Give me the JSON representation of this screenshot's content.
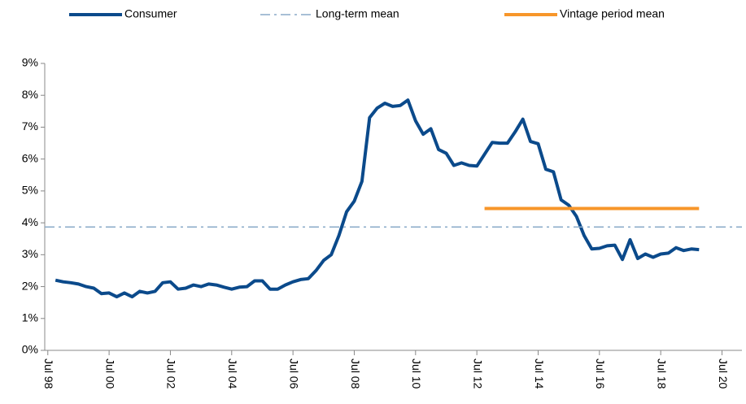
{
  "chart_data": {
    "type": "line",
    "series": [
      {
        "name": "Consumer",
        "color": "#0b4a8b",
        "style": "solid",
        "x": [
          1998.75,
          1999.0,
          1999.25,
          1999.5,
          1999.75,
          2000.0,
          2000.25,
          2000.5,
          2000.75,
          2001.0,
          2001.25,
          2001.5,
          2001.75,
          2002.0,
          2002.25,
          2002.5,
          2002.75,
          2003.0,
          2003.25,
          2003.5,
          2003.75,
          2004.0,
          2004.25,
          2004.5,
          2004.75,
          2005.0,
          2005.25,
          2005.5,
          2005.75,
          2006.0,
          2006.25,
          2006.5,
          2006.75,
          2007.0,
          2007.25,
          2007.5,
          2007.75,
          2008.0,
          2008.25,
          2008.5,
          2008.75,
          2009.0,
          2009.25,
          2009.5,
          2009.75,
          2010.0,
          2010.25,
          2010.5,
          2010.75,
          2011.0,
          2011.25,
          2011.5,
          2011.75,
          2012.0,
          2012.25,
          2012.5,
          2012.75,
          2013.0,
          2013.25,
          2013.5,
          2013.75,
          2014.0,
          2014.25,
          2014.5,
          2014.75,
          2015.0,
          2015.25,
          2015.5,
          2015.75,
          2016.0,
          2016.25,
          2016.5,
          2016.75,
          2017.0,
          2017.25,
          2017.5,
          2017.75,
          2018.0,
          2018.25,
          2018.5,
          2018.75,
          2019.0,
          2019.25,
          2019.5,
          2019.75
        ],
        "values": [
          2.2,
          2.15,
          2.12,
          2.08,
          2.0,
          1.95,
          1.78,
          1.8,
          1.68,
          1.8,
          1.68,
          1.85,
          1.8,
          1.85,
          2.12,
          2.15,
          1.92,
          1.95,
          2.05,
          2.0,
          2.08,
          2.05,
          1.98,
          1.92,
          1.98,
          2.0,
          2.18,
          2.18,
          1.92,
          1.92,
          2.05,
          2.15,
          2.22,
          2.25,
          2.5,
          2.82,
          3.0,
          3.6,
          4.35,
          4.68,
          5.3,
          7.3,
          7.6,
          7.75,
          7.65,
          7.68,
          7.85,
          7.2,
          6.78,
          6.95,
          6.3,
          6.18,
          5.8,
          5.88,
          5.8,
          5.78,
          6.15,
          6.52,
          6.5,
          6.5,
          6.85,
          7.25,
          6.55,
          6.48,
          5.68,
          5.6,
          4.72,
          4.55,
          4.2,
          3.6,
          3.18,
          3.2,
          3.28,
          3.3,
          2.85,
          3.47,
          2.88,
          3.02,
          2.92,
          3.02,
          3.05,
          3.22,
          3.13,
          3.18,
          3.16
        ]
      },
      {
        "name": "Long-term mean",
        "color": "#8aaac8",
        "style": "dashdot",
        "x": [
          1998.4,
          2021.15
        ],
        "values": [
          3.87,
          3.87
        ]
      },
      {
        "name": "Vintage period mean",
        "color": "#f7962a",
        "style": "solid",
        "x": [
          2012.75,
          2019.75
        ],
        "values": [
          4.45,
          4.45
        ]
      }
    ],
    "xlim": [
      1998.4,
      2021.15
    ],
    "xticks": [
      {
        "value": 1998.5,
        "label": "Jul 98"
      },
      {
        "value": 2000.5,
        "label": "Jul 00"
      },
      {
        "value": 2002.5,
        "label": "Jul 02"
      },
      {
        "value": 2004.5,
        "label": "Jul 04"
      },
      {
        "value": 2006.5,
        "label": "Jul 06"
      },
      {
        "value": 2008.5,
        "label": "Jul 08"
      },
      {
        "value": 2010.5,
        "label": "Jul 10"
      },
      {
        "value": 2012.5,
        "label": "Jul 12"
      },
      {
        "value": 2014.5,
        "label": "Jul 14"
      },
      {
        "value": 2016.5,
        "label": "Jul 16"
      },
      {
        "value": 2018.5,
        "label": "Jul 18"
      },
      {
        "value": 2020.5,
        "label": "Jul 20"
      }
    ],
    "ylim": [
      0,
      9
    ],
    "yticks": [
      {
        "value": 0,
        "label": "0%"
      },
      {
        "value": 1,
        "label": "1%"
      },
      {
        "value": 2,
        "label": "2%"
      },
      {
        "value": 3,
        "label": "3%"
      },
      {
        "value": 4,
        "label": "4%"
      },
      {
        "value": 5,
        "label": "5%"
      },
      {
        "value": 6,
        "label": "6%"
      },
      {
        "value": 7,
        "label": "7%"
      },
      {
        "value": 8,
        "label": "8%"
      },
      {
        "value": 9,
        "label": "9%"
      }
    ],
    "grid": false,
    "legend": "top"
  }
}
